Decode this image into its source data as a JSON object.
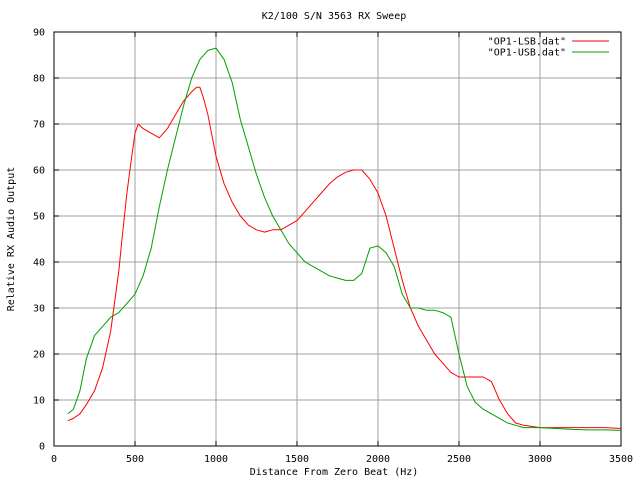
{
  "chart_data": {
    "type": "line",
    "title": "K2/100 S/N 3563 RX Sweep",
    "xlabel": "Distance From Zero Beat (Hz)",
    "ylabel": "Relative RX Audio Output",
    "xlim": [
      0,
      3500
    ],
    "ylim": [
      0,
      90
    ],
    "xticks": [
      0,
      500,
      1000,
      1500,
      2000,
      2500,
      3000,
      3500
    ],
    "yticks": [
      0,
      10,
      20,
      30,
      40,
      50,
      60,
      70,
      80,
      90
    ],
    "grid": true,
    "legend_position": "top-right",
    "series": [
      {
        "name": "\"OP1-LSB.dat\"",
        "color": "#ff0000",
        "x": [
          85,
          120,
          160,
          200,
          250,
          300,
          350,
          400,
          420,
          450,
          480,
          500,
          520,
          550,
          600,
          650,
          700,
          750,
          800,
          850,
          880,
          900,
          920,
          950,
          1000,
          1050,
          1100,
          1150,
          1200,
          1250,
          1300,
          1350,
          1400,
          1450,
          1500,
          1550,
          1600,
          1650,
          1700,
          1750,
          1800,
          1850,
          1900,
          1950,
          2000,
          2050,
          2100,
          2150,
          2200,
          2250,
          2300,
          2350,
          2400,
          2450,
          2500,
          2550,
          2600,
          2650,
          2700,
          2750,
          2800,
          2850,
          2900,
          3000,
          3100,
          3200,
          3300,
          3400,
          3500
        ],
        "y": [
          5.5,
          6,
          7,
          9,
          12,
          17,
          25,
          38,
          45,
          55,
          63,
          68,
          70,
          69,
          68,
          67,
          69,
          72,
          75,
          77,
          78,
          78,
          76,
          72,
          63,
          57,
          53,
          50,
          48,
          47,
          46.5,
          47,
          47,
          48,
          49,
          51,
          53,
          55,
          57,
          58.5,
          59.5,
          60,
          60,
          58,
          55,
          50,
          43,
          36,
          30,
          26,
          23,
          20,
          18,
          16,
          15,
          15,
          15,
          15,
          14,
          10,
          7,
          5,
          4.5,
          4,
          4,
          4,
          4,
          4,
          3.8
        ]
      },
      {
        "name": "\"OP1-USB.dat\"",
        "color": "#00a000",
        "x": [
          85,
          120,
          160,
          200,
          250,
          300,
          350,
          400,
          450,
          500,
          550,
          600,
          650,
          700,
          750,
          800,
          850,
          900,
          950,
          1000,
          1050,
          1100,
          1150,
          1200,
          1250,
          1300,
          1350,
          1400,
          1450,
          1500,
          1550,
          1600,
          1650,
          1700,
          1750,
          1800,
          1850,
          1900,
          1950,
          2000,
          2050,
          2100,
          2150,
          2200,
          2250,
          2300,
          2350,
          2400,
          2450,
          2500,
          2550,
          2600,
          2650,
          2700,
          2750,
          2800,
          2850,
          2900,
          3000,
          3100,
          3200,
          3300,
          3400,
          3500
        ],
        "y": [
          7,
          8,
          12,
          19,
          24,
          26,
          28,
          29,
          31,
          33,
          37,
          43,
          52,
          60,
          67,
          74,
          80,
          84,
          86,
          86.5,
          84,
          79,
          71,
          65,
          59,
          54,
          50,
          47,
          44,
          42,
          40,
          39,
          38,
          37,
          36.5,
          36,
          36,
          37.5,
          43,
          43.5,
          42,
          39,
          33,
          30,
          30,
          29.5,
          29.5,
          29,
          28,
          20,
          13,
          9.5,
          8,
          7,
          6,
          5,
          4.5,
          4,
          4,
          3.8,
          3.6,
          3.5,
          3.5,
          3.4
        ]
      }
    ]
  }
}
